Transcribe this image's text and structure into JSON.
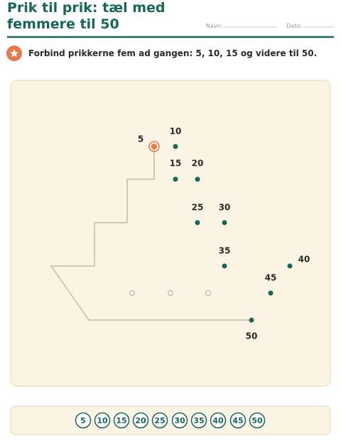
{
  "header": {
    "title_lines": [
      "Prik til prik: tæl med",
      "femmere til 50"
    ],
    "name_label": "Navn:",
    "date_label": "Dato:"
  },
  "instruction": "Forbind prikkerne fem ad gangen: 5, 10, 15 og videre til 50.",
  "dots": [
    "5",
    "10",
    "15",
    "20",
    "25",
    "30",
    "35",
    "40",
    "45",
    "50"
  ],
  "number_strip": [
    "5",
    "10",
    "15",
    "20",
    "25",
    "30",
    "35",
    "40",
    "45",
    "50"
  ]
}
